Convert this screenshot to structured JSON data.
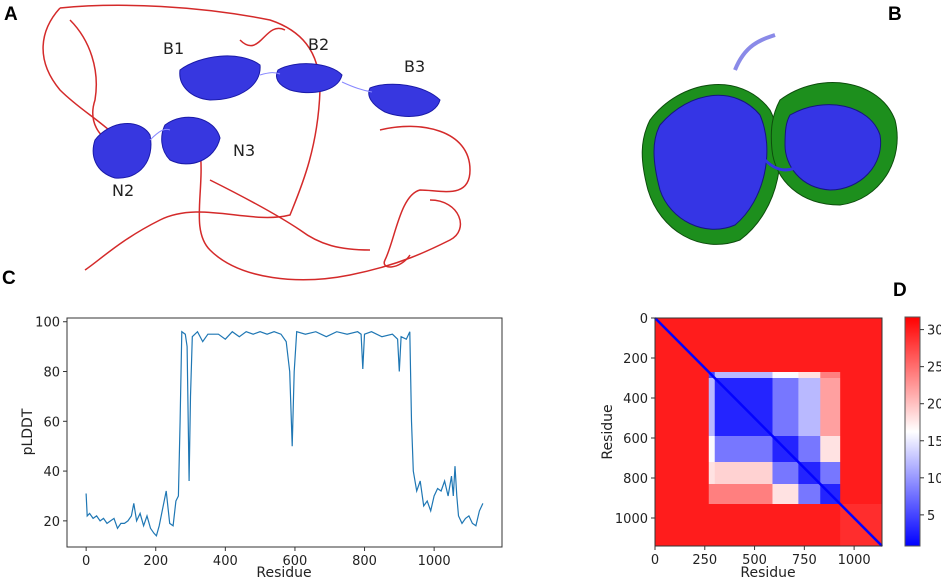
{
  "panels": {
    "a": {
      "label": "A",
      "domain_labels": [
        "B1",
        "B2",
        "B3",
        "N3",
        "N2"
      ]
    },
    "b": {
      "label": "B"
    },
    "c": {
      "label": "C"
    },
    "d": {
      "label": "D"
    }
  },
  "colors": {
    "structure_ordered": "#3333ee",
    "structure_disordered": "#d42a2a",
    "superposed": "#22aa22",
    "line": "#1f77b4"
  },
  "chart_data": [
    {
      "type": "line",
      "panel": "C",
      "xlabel": "Residue",
      "ylabel": "pLDDT",
      "xlim": [
        -55,
        1195
      ],
      "ylim": [
        9.5,
        101.5
      ],
      "xticks": [
        0,
        200,
        400,
        600,
        800,
        1000
      ],
      "yticks": [
        20,
        40,
        60,
        80,
        100
      ],
      "grid": false,
      "series": [
        {
          "x": [
            0,
            3,
            10,
            20,
            30,
            40,
            50,
            60,
            70,
            80,
            90,
            100,
            110,
            120,
            130,
            137,
            145,
            155,
            165,
            175,
            185,
            195,
            202,
            210,
            220,
            230,
            240,
            250,
            258,
            265,
            270,
            275,
            285,
            290,
            296,
            300,
            305,
            320,
            335,
            350,
            380,
            400,
            420,
            440,
            460,
            480,
            500,
            520,
            540,
            560,
            575,
            585,
            592,
            598,
            605,
            630,
            660,
            690,
            720,
            750,
            780,
            790,
            795,
            800,
            820,
            850,
            880,
            895,
            900,
            905,
            920,
            930,
            935,
            940,
            950,
            960,
            970,
            980,
            990,
            1000,
            1010,
            1020,
            1030,
            1040,
            1050,
            1055,
            1060,
            1065,
            1070,
            1080,
            1090,
            1100,
            1110,
            1120,
            1130,
            1140
          ],
          "y": [
            31,
            22,
            23,
            21,
            22,
            20,
            21,
            19,
            20,
            21,
            17,
            19,
            19,
            20,
            22,
            27,
            20,
            23,
            18,
            22,
            17,
            15,
            14,
            18,
            25,
            32,
            19,
            18,
            28,
            30,
            60,
            96,
            95,
            90,
            36,
            70,
            94,
            96,
            92,
            95,
            95,
            93,
            96,
            94,
            96,
            95,
            96,
            95,
            96,
            95,
            92,
            80,
            50,
            80,
            96,
            95,
            96,
            94,
            96,
            95,
            96,
            95,
            81,
            95,
            96,
            94,
            95,
            93,
            80,
            94,
            93,
            96,
            60,
            40,
            32,
            36,
            26,
            28,
            24,
            30,
            33,
            32,
            36,
            30,
            38,
            30,
            42,
            30,
            22,
            19,
            21,
            22,
            19,
            18,
            24,
            27
          ]
        }
      ]
    },
    {
      "type": "heatmap",
      "panel": "D",
      "xlabel": "Residue",
      "ylabel": "Residue",
      "xticks": [
        0,
        250,
        500,
        750,
        1000
      ],
      "yticks": [
        0,
        200,
        400,
        600,
        800,
        1000
      ],
      "range": [
        0,
        1140
      ],
      "segments": [
        [
          0,
          270
        ],
        [
          270,
          300
        ],
        [
          300,
          590
        ],
        [
          590,
          720
        ],
        [
          720,
          830
        ],
        [
          830,
          930
        ],
        [
          930,
          1140
        ]
      ],
      "block_values": [
        [
          30,
          30,
          30,
          30,
          30,
          30,
          30
        ],
        [
          30,
          5,
          12,
          16,
          18,
          24,
          30
        ],
        [
          30,
          12,
          3,
          8,
          12,
          22,
          30
        ],
        [
          30,
          16,
          8,
          3,
          8,
          18,
          30
        ],
        [
          30,
          18,
          19,
          8,
          3,
          8,
          30
        ],
        [
          30,
          24,
          24,
          18,
          8,
          3,
          30
        ],
        [
          30,
          30,
          30,
          30,
          30,
          30,
          29
        ]
      ],
      "diagonal_value": 1,
      "colormap": "bwr",
      "colorbar": {
        "min": 0.8,
        "max": 31.7,
        "ticks": [
          5,
          10,
          15,
          20,
          25,
          30
        ]
      }
    }
  ]
}
